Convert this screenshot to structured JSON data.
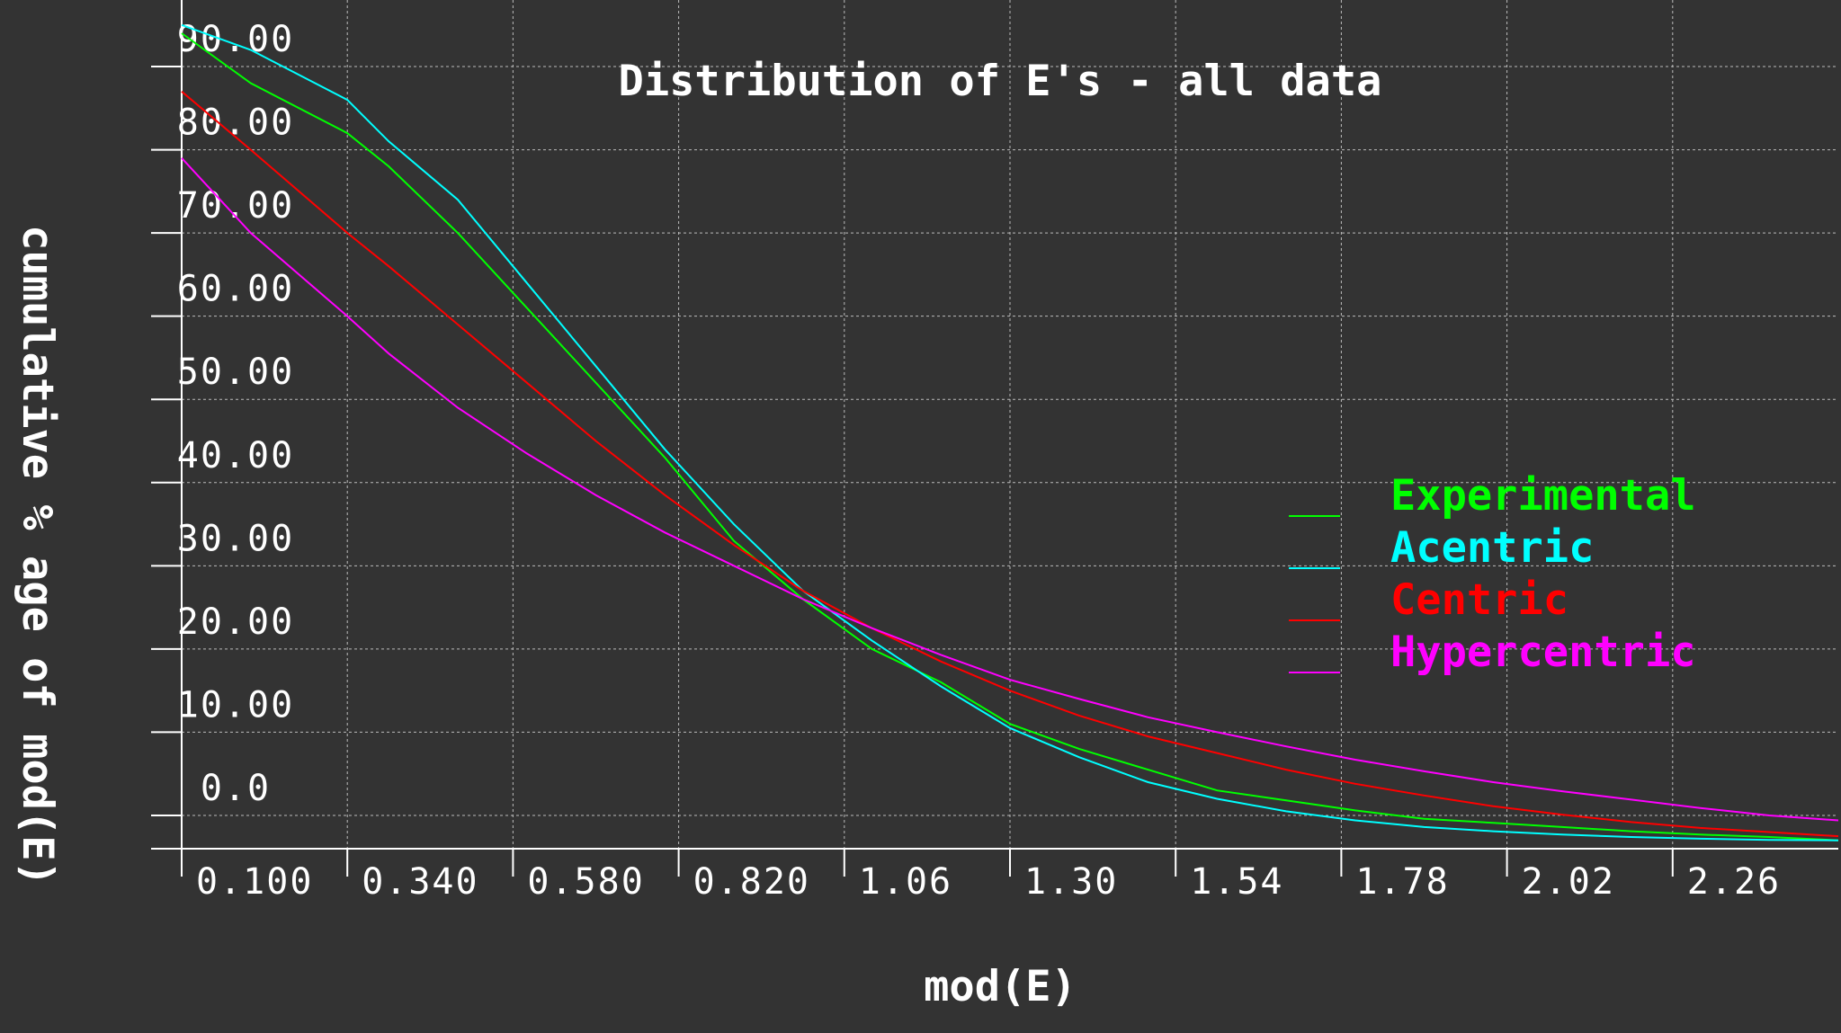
{
  "chart_data": {
    "type": "line",
    "title": "Distribution of E's - all data",
    "xlabel": "mod(E)",
    "ylabel": "cumulative % age of mod(E)",
    "x_tick_labels": [
      "0.100",
      "0.340",
      "0.580",
      "0.820",
      "1.06",
      "1.30",
      "1.54",
      "1.78",
      "2.02",
      "2.26"
    ],
    "x_ticks": [
      0.1,
      0.34,
      0.58,
      0.82,
      1.06,
      1.3,
      1.54,
      1.78,
      2.02,
      2.26
    ],
    "y_tick_labels": [
      "90.00",
      "80.00",
      "70.00",
      "60.00",
      "50.00",
      "40.00",
      "30.00",
      "20.00",
      "10.00",
      "0.0"
    ],
    "y_ticks": [
      90,
      80,
      70,
      60,
      50,
      40,
      30,
      20,
      10,
      0
    ],
    "xlim": [
      0.1,
      2.5
    ],
    "ylim": [
      -4,
      98
    ],
    "grid": true,
    "legend_position": "right",
    "x": [
      0.1,
      0.2,
      0.34,
      0.4,
      0.5,
      0.6,
      0.7,
      0.8,
      0.9,
      1.0,
      1.1,
      1.2,
      1.3,
      1.4,
      1.5,
      1.6,
      1.7,
      1.8,
      1.9,
      2.0,
      2.1,
      2.2,
      2.3,
      2.4,
      2.5
    ],
    "series": [
      {
        "name": "Experimental",
        "color": "#00ff00",
        "values": [
          94,
          88,
          82,
          78,
          70,
          61,
          52,
          43,
          33,
          26,
          20,
          16,
          11,
          8,
          5.5,
          3,
          1.8,
          0.6,
          -0.4,
          -0.9,
          -1.4,
          -1.9,
          -2.3,
          -2.6,
          -3.0
        ]
      },
      {
        "name": "Acentric",
        "color": "#00ffff",
        "values": [
          95,
          92,
          86,
          81,
          74,
          64,
          54,
          44,
          35,
          27,
          21,
          15.5,
          10.5,
          7,
          4,
          2,
          0.5,
          -0.6,
          -1.4,
          -1.9,
          -2.3,
          -2.6,
          -2.8,
          -2.95,
          -3.0
        ]
      },
      {
        "name": "Centric",
        "color": "#ff0000",
        "values": [
          87,
          80,
          70,
          66,
          59,
          52,
          45,
          38.5,
          32.5,
          27,
          22.5,
          18.5,
          15,
          12,
          9.5,
          7.5,
          5.5,
          3.8,
          2.4,
          1.1,
          0.1,
          -0.8,
          -1.5,
          -2.0,
          -2.5
        ]
      },
      {
        "name": "Hypercentric",
        "color": "#ff00ff",
        "values": [
          79,
          70,
          60,
          55.5,
          49,
          43.5,
          38.5,
          34,
          30,
          26,
          22.5,
          19.3,
          16.3,
          14,
          11.8,
          10,
          8.3,
          6.7,
          5.3,
          4,
          2.9,
          1.9,
          0.9,
          0,
          -0.6
        ]
      }
    ]
  }
}
